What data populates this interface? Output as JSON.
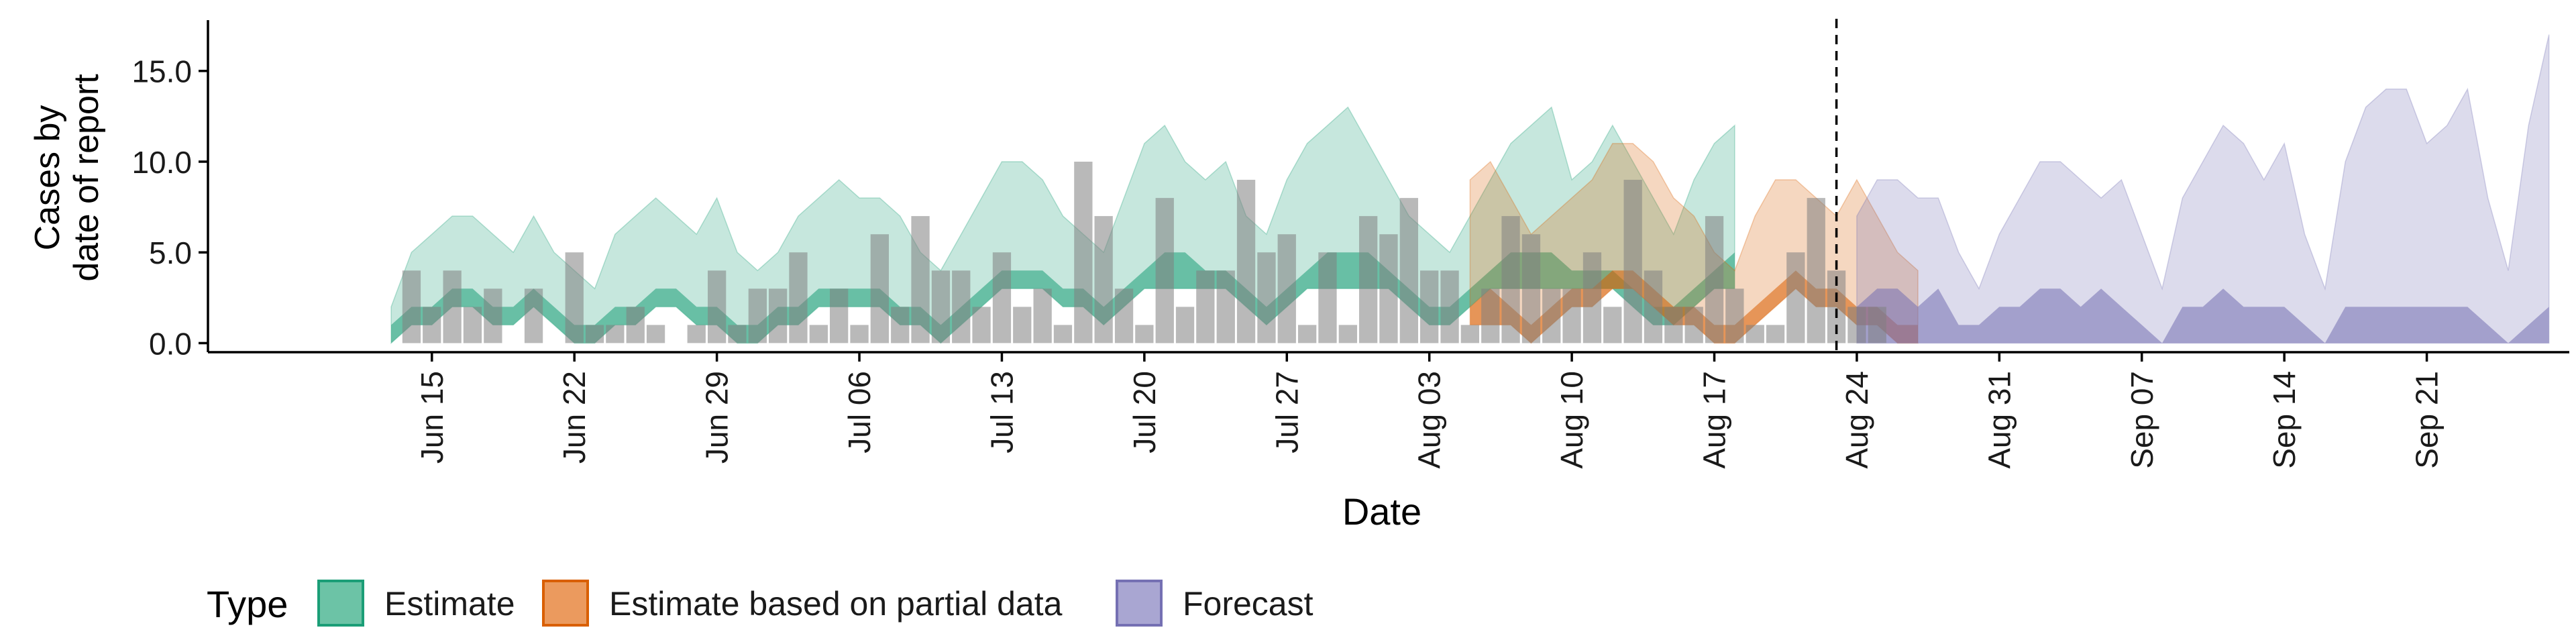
{
  "chart_data": {
    "type": "area",
    "xlabel": "Date",
    "ylabel": [
      "Cases by",
      "date of report"
    ],
    "ylim": [
      -0.5,
      17.8
    ],
    "y_ticks": [
      0,
      5,
      10,
      15
    ],
    "y_tick_labels": [
      "0.0",
      "5.0",
      "10.0",
      "15.0"
    ],
    "xlim": [
      "2020-06-04",
      "2020-09-28"
    ],
    "x_ticks": [
      "2020-06-15",
      "2020-06-22",
      "2020-06-29",
      "2020-07-06",
      "2020-07-13",
      "2020-07-20",
      "2020-07-27",
      "2020-08-03",
      "2020-08-10",
      "2020-08-17",
      "2020-08-24",
      "2020-08-31",
      "2020-09-07",
      "2020-09-14",
      "2020-09-21"
    ],
    "x_tick_labels": [
      "Jun 15",
      "Jun 22",
      "Jun 29",
      "Jul 06",
      "Jul 13",
      "Jul 20",
      "Jul 27",
      "Aug 03",
      "Aug 10",
      "Aug 17",
      "Aug 24",
      "Aug 31",
      "Sep 07",
      "Sep 14",
      "Sep 21"
    ],
    "forecast_line_date": "2020-08-23",
    "legend": {
      "title": "Type",
      "position": "bottom",
      "entries": [
        {
          "label": "Estimate",
          "fill": "#6cc3a6",
          "stroke": "#1b9e77"
        },
        {
          "label": "Estimate based on partial data",
          "fill": "#eb9a5e",
          "stroke": "#d95f02"
        },
        {
          "label": "Forecast",
          "fill": "#a9a6d2",
          "stroke": "#7570b3"
        }
      ]
    },
    "reported_cases": {
      "start": "2020-06-13",
      "values": [
        0,
        4,
        2,
        4,
        2,
        3,
        0,
        3,
        0,
        5,
        1,
        1,
        2,
        1,
        0,
        1,
        4,
        1,
        3,
        3,
        5,
        1,
        3,
        1,
        6,
        2,
        7,
        4,
        4,
        2,
        5,
        2,
        3,
        1,
        10,
        7,
        3,
        1,
        8,
        2,
        4,
        4,
        9,
        5,
        6,
        1,
        5,
        1,
        7,
        6,
        8,
        4,
        4,
        1,
        3,
        7,
        6,
        3,
        3,
        5,
        2,
        9,
        4,
        2,
        2,
        7,
        3,
        1,
        1,
        5,
        8,
        4,
        2,
        2
      ]
    },
    "series": [
      {
        "name": "Estimate",
        "color_key": "estimate",
        "start": "2020-06-13",
        "upper": [
          2,
          5,
          6,
          7,
          7,
          6,
          5,
          7,
          5,
          4,
          3,
          6,
          7,
          8,
          7,
          6,
          8,
          5,
          4,
          5,
          7,
          8,
          9,
          8,
          8,
          7,
          5,
          4,
          6,
          8,
          10,
          10,
          9,
          7,
          6,
          5,
          8,
          11,
          12,
          10,
          9,
          10,
          7,
          6,
          9,
          11,
          12,
          13,
          11,
          9,
          7,
          6,
          5,
          7,
          9,
          11,
          12,
          13,
          9,
          10,
          12,
          10,
          8,
          6,
          9,
          11,
          12
        ],
        "middle": [
          1,
          2,
          2,
          3,
          3,
          2,
          2,
          3,
          2,
          1,
          1,
          2,
          2,
          3,
          3,
          2,
          2,
          1,
          1,
          2,
          2,
          3,
          3,
          3,
          3,
          2,
          2,
          1,
          2,
          3,
          4,
          4,
          4,
          3,
          3,
          2,
          3,
          4,
          5,
          5,
          4,
          4,
          3,
          2,
          3,
          4,
          5,
          5,
          5,
          4,
          3,
          2,
          2,
          3,
          4,
          5,
          5,
          5,
          4,
          4,
          4,
          3,
          2,
          2,
          3,
          4,
          5
        ],
        "lower": [
          0,
          1,
          1,
          2,
          2,
          1,
          1,
          2,
          1,
          0,
          0,
          1,
          1,
          2,
          2,
          1,
          1,
          0,
          0,
          1,
          1,
          2,
          2,
          2,
          2,
          1,
          1,
          0,
          1,
          2,
          3,
          3,
          3,
          2,
          2,
          1,
          2,
          3,
          3,
          3,
          3,
          3,
          2,
          1,
          2,
          3,
          3,
          3,
          3,
          3,
          2,
          1,
          1,
          2,
          3,
          3,
          3,
          3,
          3,
          3,
          3,
          2,
          1,
          1,
          2,
          3,
          3
        ]
      },
      {
        "name": "Estimate based on partial data",
        "color_key": "partial",
        "start": "2020-08-05",
        "upper": [
          9,
          10,
          8,
          6,
          7,
          8,
          9,
          11,
          11,
          10,
          8,
          7,
          5,
          4,
          7,
          9,
          9,
          8,
          7,
          9,
          7,
          5,
          4
        ],
        "middle": [
          2,
          3,
          2,
          1,
          2,
          3,
          3,
          4,
          4,
          3,
          2,
          2,
          1,
          1,
          2,
          3,
          4,
          3,
          3,
          2,
          2,
          1,
          1
        ],
        "lower": [
          1,
          1,
          1,
          0,
          1,
          2,
          2,
          3,
          3,
          2,
          1,
          1,
          0,
          0,
          1,
          2,
          3,
          2,
          2,
          1,
          1,
          0,
          0
        ]
      },
      {
        "name": "Forecast",
        "color_key": "forecast",
        "start": "2020-08-24",
        "upper": [
          7,
          9,
          9,
          8,
          8,
          5,
          3,
          6,
          8,
          10,
          10,
          9,
          8,
          9,
          6,
          3,
          8,
          10,
          12,
          11,
          9,
          11,
          6,
          3,
          10,
          13,
          14,
          14,
          11,
          12,
          14,
          8,
          4,
          12,
          17
        ],
        "middle": [
          2,
          3,
          3,
          2,
          3,
          1,
          1,
          2,
          2,
          3,
          3,
          2,
          3,
          2,
          1,
          0,
          2,
          2,
          3,
          2,
          2,
          2,
          1,
          0,
          2,
          2,
          2,
          2,
          2,
          2,
          2,
          1,
          0,
          1,
          2
        ],
        "lower": [
          0,
          0,
          0,
          0,
          0,
          0,
          0,
          0,
          0,
          0,
          0,
          0,
          0,
          0,
          0,
          0,
          0,
          0,
          0,
          0,
          0,
          0,
          0,
          0,
          0,
          0,
          0,
          0,
          0,
          0,
          0,
          0,
          0,
          0,
          0
        ]
      }
    ]
  },
  "colors": {
    "estimate": "#1b9e77",
    "partial": "#d95f02",
    "forecast": "#7570b3",
    "bars": "#7f7f7f",
    "axis": "#000000"
  }
}
